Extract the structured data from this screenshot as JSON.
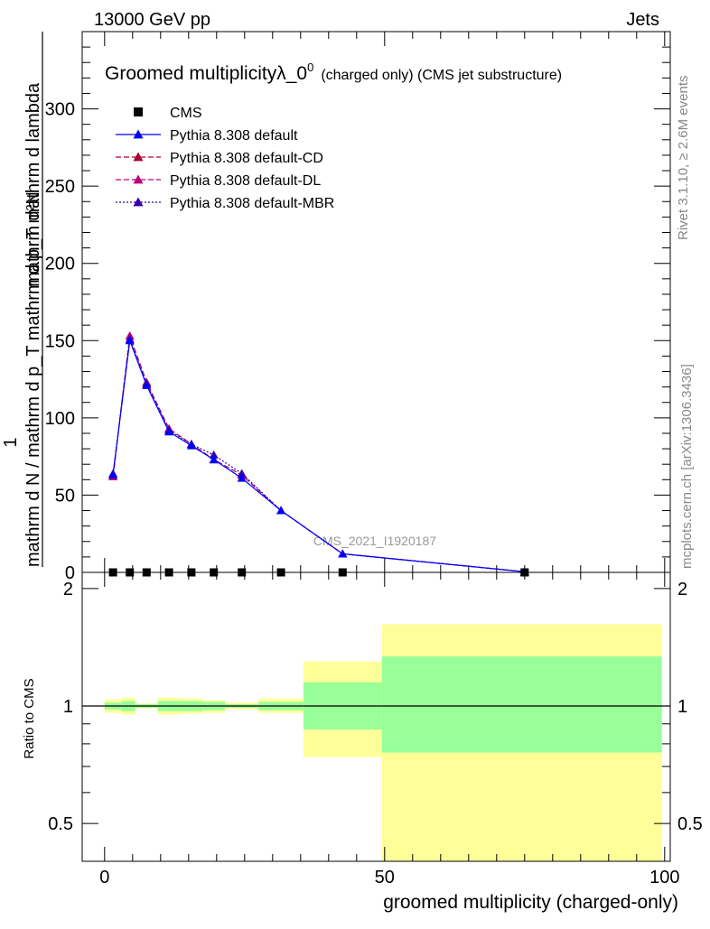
{
  "header": {
    "left": "13000 GeV pp",
    "right": "Jets"
  },
  "side_labels": {
    "rivet": "Rivet 3.1.10, ≥ 2.6M events",
    "mcplots": "mcplots.cern.ch [arXiv:1306.3436]"
  },
  "watermark": "CMS_2021_I1920187",
  "chart_data": [
    {
      "type": "line",
      "title_main": "Groomed multiplicityλ_0",
      "title_sup": "0",
      "title_sub": "(charged only) (CMS jet substructure)",
      "ylabel_numerator": "mathrm d²N",
      "ylabel_denominator": "mathrm d N / mathrm d p_T mathrm d p_T mathrm d lambda",
      "ylabel_one": "1",
      "ylim": [
        0,
        350
      ],
      "yticks": [
        0,
        50,
        100,
        150,
        200,
        250,
        300
      ],
      "xlim": [
        -4,
        101
      ],
      "legend_position": "top-left",
      "x": [
        1.5,
        4.5,
        7.5,
        11.5,
        15.5,
        19.5,
        24.5,
        31.5,
        42.5,
        75
      ],
      "series": [
        {
          "name": "CMS",
          "color": "#000000",
          "marker": "square",
          "values": [
            0,
            0,
            0,
            0,
            0,
            0,
            0,
            0,
            0,
            0
          ]
        },
        {
          "name": "Pythia 8.308 default",
          "color": "#0000ff",
          "line": "solid",
          "marker": "triangle",
          "values": [
            63,
            150,
            121,
            91,
            82,
            73,
            61,
            40,
            12,
            0.4
          ]
        },
        {
          "name": "Pythia 8.308 default-CD",
          "color": "#aa0033",
          "line": "dashed",
          "marker": "triangle",
          "values": [
            62,
            153,
            123,
            93,
            83,
            73,
            63,
            40,
            12,
            0.4
          ]
        },
        {
          "name": "Pythia 8.308 default-DL",
          "color": "#bb0077",
          "line": "dashed",
          "marker": "triangle",
          "values": [
            62,
            153,
            123,
            93,
            83,
            73,
            63,
            40,
            12,
            0.4
          ]
        },
        {
          "name": "Pythia 8.308 default-MBR",
          "color": "#3300aa",
          "line": "dotted",
          "marker": "triangle",
          "values": [
            64,
            151,
            122,
            92,
            83,
            76,
            64,
            40,
            12,
            0.4
          ]
        }
      ]
    },
    {
      "type": "area",
      "ylabel": "Ratio to CMS",
      "xlabel": "groomed multiplicity (charged-only)",
      "ylim": [
        0.4,
        2.2
      ],
      "yticks": [
        0.5,
        1,
        2
      ],
      "xticks": [
        0,
        50,
        100
      ],
      "xlim": [
        -4,
        101
      ],
      "reference_line": 1,
      "bands": [
        {
          "x0": 0,
          "x1": 3,
          "green": [
            0.98,
            1.02
          ],
          "yellow": [
            0.96,
            1.04
          ]
        },
        {
          "x0": 3,
          "x1": 5.5,
          "green": [
            0.97,
            1.03
          ],
          "yellow": [
            0.95,
            1.05
          ]
        },
        {
          "x0": 5.5,
          "x1": 9.5,
          "green": [
            0.99,
            1.01
          ],
          "yellow": [
            0.985,
            1.015
          ]
        },
        {
          "x0": 9.5,
          "x1": 13.5,
          "green": [
            0.97,
            1.03
          ],
          "yellow": [
            0.95,
            1.05
          ]
        },
        {
          "x0": 13.5,
          "x1": 17.5,
          "green": [
            0.97,
            1.03
          ],
          "yellow": [
            0.955,
            1.045
          ]
        },
        {
          "x0": 17.5,
          "x1": 21.5,
          "green": [
            0.975,
            1.025
          ],
          "yellow": [
            0.96,
            1.035
          ]
        },
        {
          "x0": 21.5,
          "x1": 27.5,
          "green": [
            0.99,
            1.01
          ],
          "yellow": [
            0.98,
            1.02
          ]
        },
        {
          "x0": 27.5,
          "x1": 35.5,
          "green": [
            0.975,
            1.025
          ],
          "yellow": [
            0.96,
            1.045
          ]
        },
        {
          "x0": 35.5,
          "x1": 49.5,
          "green": [
            0.87,
            1.15
          ],
          "yellow": [
            0.74,
            1.3
          ]
        },
        {
          "x0": 49.5,
          "x1": 99.5,
          "green": [
            0.76,
            1.34
          ],
          "yellow": [
            0.4,
            1.62
          ]
        }
      ]
    }
  ]
}
